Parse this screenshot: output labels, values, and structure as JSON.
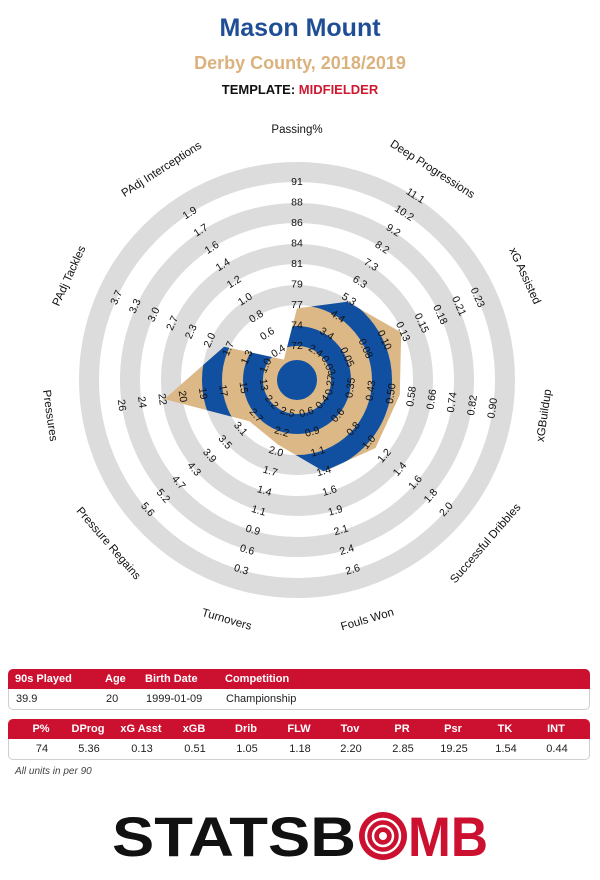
{
  "header": {
    "player": "Mason Mount",
    "team_season": "Derby County, 2018/2019",
    "template_label": "TEMPLATE:",
    "template_role": "MIDFIELDER"
  },
  "colors": {
    "title_blue": "#1f4e96",
    "subtitle_tan": "#dbb27e",
    "accent_red": "#cc1130",
    "ring_gray": "#dcdcdc",
    "player_polygon": "#dcb887",
    "inner_blue": "#1150a0"
  },
  "chart_data": {
    "type": "radar",
    "axes": [
      {
        "label": "Passing%",
        "ticks": [
          "72",
          "74",
          "77",
          "79",
          "81",
          "84",
          "86",
          "88",
          "91"
        ],
        "value": 74
      },
      {
        "label": "Deep Progressions",
        "ticks": [
          "2.4",
          "3.4",
          "4.4",
          "5.3",
          "6.3",
          "7.3",
          "8.2",
          "9.2",
          "10.2",
          "11.1"
        ],
        "value": 5.36
      },
      {
        "label": "xG Assisted",
        "ticks": [
          "0.03",
          "0.05",
          "0.08",
          "0.10",
          "0.13",
          "0.15",
          "0.18",
          "0.21",
          "0.23"
        ],
        "value": 0.13
      },
      {
        "label": "xGBuildup",
        "ticks": [
          "0.27",
          "0.35",
          "0.43",
          "0.50",
          "0.58",
          "0.66",
          "0.74",
          "0.82",
          "0.90"
        ],
        "value": 0.51
      },
      {
        "label": "Successful Dribbles",
        "ticks": [
          "0.4",
          "0.6",
          "0.8",
          "1.0",
          "1.2",
          "1.4",
          "1.6",
          "1.8",
          "2.0"
        ],
        "value": 1.05
      },
      {
        "label": "Fouls Won",
        "ticks": [
          "0.6",
          "0.9",
          "1.1",
          "1.4",
          "1.6",
          "1.9",
          "2.1",
          "2.4",
          "2.6"
        ],
        "value": 1.18
      },
      {
        "label": "Turnovers",
        "ticks": [
          "2.5",
          "2.2",
          "2.0",
          "1.7",
          "1.4",
          "1.1",
          "0.9",
          "0.6",
          "0.3"
        ],
        "value": 2.2
      },
      {
        "label": "Pressure Regains",
        "ticks": [
          "2.2",
          "2.7",
          "3.1",
          "3.5",
          "3.9",
          "4.3",
          "4.7",
          "5.2",
          "5.6"
        ],
        "value": 2.85
      },
      {
        "label": "Pressures",
        "ticks": [
          "13",
          "15",
          "17",
          "19",
          "20",
          "22",
          "24",
          "26"
        ],
        "value": 19.25
      },
      {
        "label": "PAdj Tackles",
        "ticks": [
          "1.0",
          "1.3",
          "1.7",
          "2.0",
          "2.3",
          "2.7",
          "3.0",
          "3.3",
          "3.7"
        ],
        "value": 1.54
      },
      {
        "label": "PAdj Interceptions",
        "ticks": [
          "0.4",
          "0.6",
          "0.8",
          "1.0",
          "1.2",
          "1.4",
          "1.6",
          "1.7",
          "1.9"
        ],
        "value": 0.44
      }
    ],
    "series": [
      {
        "values_pct": [
          0.24,
          0.34,
          0.44,
          0.39,
          0.39,
          0.35,
          0.22,
          0.2,
          0.53,
          0.28,
          0.02
        ]
      }
    ]
  },
  "info_table": {
    "headers": [
      "90s Played",
      "Age",
      "Birth Date",
      "Competition"
    ],
    "values": [
      "39.9",
      "20",
      "1999-01-09",
      "Championship"
    ]
  },
  "stats_table": {
    "headers": [
      "P%",
      "DProg",
      "xG Asst",
      "xGB",
      "Drib",
      "FLW",
      "Tov",
      "PR",
      "Psr",
      "TK",
      "INT"
    ],
    "values": [
      "74",
      "5.36",
      "0.13",
      "0.51",
      "1.05",
      "1.18",
      "2.20",
      "2.85",
      "19.25",
      "1.54",
      "0.44"
    ]
  },
  "note": "All units in per 90",
  "logo": {
    "part1": "STATS",
    "part2": "B",
    "part3": "MB"
  }
}
